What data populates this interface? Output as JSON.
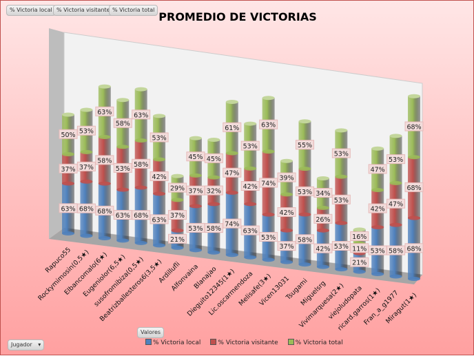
{
  "field_buttons": [
    "% Victoria local",
    "% Victoria visitante",
    "% Victoria total"
  ],
  "values_button": "Valores",
  "axis_button": {
    "label": "Jugador",
    "icon": "dropdown-arrow-icon"
  },
  "colors": {
    "local": "#4f81bd",
    "visitante": "#c0504d",
    "total": "#9bbb59"
  },
  "chart_data": {
    "type": "bar",
    "subtype": "3d-stacked-cylinder",
    "title": "PROMEDIO DE VICTORIAS",
    "categories": [
      "Rapuco55",
      "Rockymimosin(0,5★)",
      "Elbancomalo(6★)",
      "Eugeniolor(6,5★)",
      "susofromibiza(0,5★)",
      "Beatrizballesteros6(3,5★)",
      "Ardillufli",
      "Alfonvaina",
      "Blanajao",
      "Dieguito12345(1★)",
      "Lic.oscarmendoza",
      "Melisafe(3★)",
      "Vicen13031",
      "Tsugami",
      "Miguelsrg",
      "Vivimarquesa(2★)",
      "viejoludopata",
      "ricard.garros(1★)",
      "Fran_a_g1977",
      "Miragut(1★)"
    ],
    "series": [
      {
        "name": "% Victoria local",
        "values": [
          63,
          68,
          68,
          63,
          68,
          63,
          21,
          53,
          58,
          74,
          63,
          53,
          37,
          58,
          42,
          53,
          21,
          53,
          58,
          68
        ]
      },
      {
        "name": "% Victoria visitante",
        "values": [
          37,
          37,
          58,
          53,
          58,
          42,
          37,
          37,
          32,
          47,
          42,
          74,
          42,
          53,
          26,
          53,
          11,
          42,
          47,
          68
        ]
      },
      {
        "name": "% Victoria total",
        "values": [
          50,
          53,
          63,
          58,
          63,
          53,
          29,
          45,
          45,
          61,
          53,
          63,
          39,
          55,
          34,
          53,
          16,
          47,
          53,
          68
        ]
      }
    ],
    "legend": "bottom",
    "data_label_suffix": "%"
  }
}
